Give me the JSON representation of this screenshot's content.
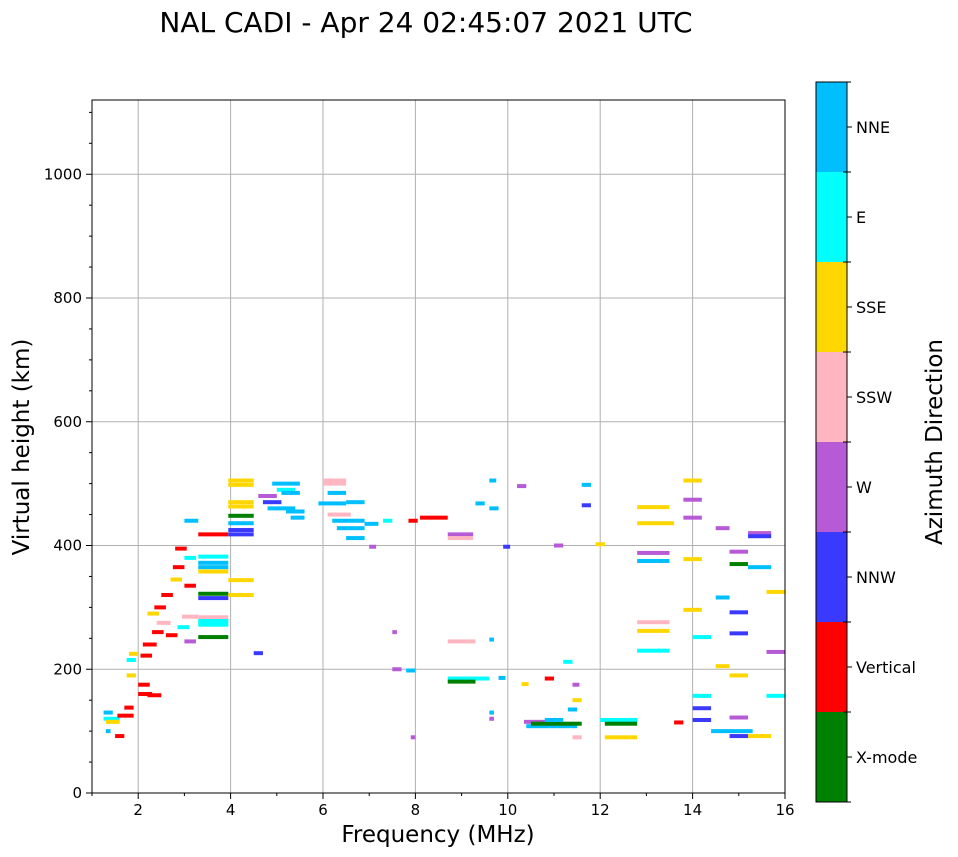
{
  "chart_data": {
    "type": "scatter",
    "title": "NAL CADI - Apr 24 02:45:07 2021 UTC",
    "xlabel": "Frequency (MHz)",
    "ylabel": "Virtual height (km)",
    "xlim": [
      1,
      16
    ],
    "ylim": [
      0,
      1120
    ],
    "x_ticks": [
      2,
      4,
      6,
      8,
      10,
      12,
      14,
      16
    ],
    "x_tick_labels": [
      "2",
      "4",
      "6",
      "8",
      "10",
      "12",
      "14",
      "16"
    ],
    "y_ticks": [
      0,
      200,
      400,
      600,
      800,
      1000
    ],
    "y_tick_labels": [
      "0",
      "200",
      "400",
      "600",
      "800",
      "1000"
    ],
    "grid": true,
    "colorbar": {
      "label": "Azimuth Direction",
      "categories": [
        {
          "name": "X-mode",
          "color": "#008000"
        },
        {
          "name": "Vertical",
          "color": "#ff0000"
        },
        {
          "name": "NNW",
          "color": "#3a3aff"
        },
        {
          "name": "W",
          "color": "#b65ad6"
        },
        {
          "name": "SSW",
          "color": "#ffb6c1"
        },
        {
          "name": "SSE",
          "color": "#ffd700"
        },
        {
          "name": "E",
          "color": "#00ffff"
        },
        {
          "name": "NNE",
          "color": "#00bfff"
        }
      ]
    },
    "segments": [
      {
        "f1": 1.25,
        "f2": 1.6,
        "h": 120,
        "d": "E"
      },
      {
        "f1": 1.3,
        "f2": 1.6,
        "h": 115,
        "d": "SSE"
      },
      {
        "f1": 1.25,
        "f2": 1.45,
        "h": 130,
        "d": "NNE"
      },
      {
        "f1": 1.3,
        "f2": 1.4,
        "h": 100,
        "d": "NNE"
      },
      {
        "f1": 1.5,
        "f2": 1.7,
        "h": 92,
        "d": "Vertical"
      },
      {
        "f1": 1.55,
        "f2": 1.9,
        "h": 125,
        "d": "Vertical"
      },
      {
        "f1": 1.7,
        "f2": 1.9,
        "h": 138,
        "d": "Vertical"
      },
      {
        "f1": 1.75,
        "f2": 1.95,
        "h": 190,
        "d": "SSE"
      },
      {
        "f1": 1.75,
        "f2": 1.95,
        "h": 215,
        "d": "E"
      },
      {
        "f1": 1.8,
        "f2": 2.0,
        "h": 225,
        "d": "SSE"
      },
      {
        "f1": 2.0,
        "f2": 2.3,
        "h": 160,
        "d": "Vertical"
      },
      {
        "f1": 2.0,
        "f2": 2.25,
        "h": 175,
        "d": "Vertical"
      },
      {
        "f1": 2.05,
        "f2": 2.3,
        "h": 222,
        "d": "Vertical"
      },
      {
        "f1": 2.1,
        "f2": 2.4,
        "h": 240,
        "d": "Vertical"
      },
      {
        "f1": 2.2,
        "f2": 2.5,
        "h": 158,
        "d": "Vertical"
      },
      {
        "f1": 2.2,
        "f2": 2.45,
        "h": 290,
        "d": "SSE"
      },
      {
        "f1": 2.3,
        "f2": 2.55,
        "h": 260,
        "d": "Vertical"
      },
      {
        "f1": 2.35,
        "f2": 2.6,
        "h": 300,
        "d": "Vertical"
      },
      {
        "f1": 2.4,
        "f2": 2.7,
        "h": 275,
        "d": "SSW"
      },
      {
        "f1": 2.5,
        "f2": 2.75,
        "h": 320,
        "d": "Vertical"
      },
      {
        "f1": 2.6,
        "f2": 2.85,
        "h": 255,
        "d": "Vertical"
      },
      {
        "f1": 2.7,
        "f2": 2.95,
        "h": 345,
        "d": "SSE"
      },
      {
        "f1": 2.75,
        "f2": 3.0,
        "h": 365,
        "d": "Vertical"
      },
      {
        "f1": 2.8,
        "f2": 3.05,
        "h": 395,
        "d": "Vertical"
      },
      {
        "f1": 2.85,
        "f2": 3.1,
        "h": 268,
        "d": "E"
      },
      {
        "f1": 2.95,
        "f2": 3.3,
        "h": 285,
        "d": "SSW"
      },
      {
        "f1": 3.0,
        "f2": 3.25,
        "h": 380,
        "d": "E"
      },
      {
        "f1": 3.0,
        "f2": 3.25,
        "h": 335,
        "d": "Vertical"
      },
      {
        "f1": 3.0,
        "f2": 3.25,
        "h": 245,
        "d": "W"
      },
      {
        "f1": 3.0,
        "f2": 3.3,
        "h": 440,
        "d": "NNE"
      },
      {
        "f1": 3.3,
        "f2": 3.95,
        "h": 382,
        "d": "E"
      },
      {
        "f1": 3.3,
        "f2": 3.95,
        "h": 372,
        "d": "NNE"
      },
      {
        "f1": 3.3,
        "f2": 3.95,
        "h": 365,
        "d": "NNE"
      },
      {
        "f1": 3.3,
        "f2": 3.95,
        "h": 358,
        "d": "SSE"
      },
      {
        "f1": 3.3,
        "f2": 3.95,
        "h": 322,
        "d": "X-mode"
      },
      {
        "f1": 3.3,
        "f2": 3.95,
        "h": 315,
        "d": "NNW"
      },
      {
        "f1": 3.3,
        "f2": 3.95,
        "h": 284,
        "d": "SSW"
      },
      {
        "f1": 3.3,
        "f2": 3.95,
        "h": 278,
        "d": "E"
      },
      {
        "f1": 3.3,
        "f2": 3.95,
        "h": 272,
        "d": "E"
      },
      {
        "f1": 3.3,
        "f2": 3.95,
        "h": 252,
        "d": "X-mode"
      },
      {
        "f1": 3.3,
        "f2": 3.95,
        "h": 418,
        "d": "Vertical"
      },
      {
        "f1": 3.95,
        "f2": 4.5,
        "h": 505,
        "d": "SSE"
      },
      {
        "f1": 3.95,
        "f2": 4.5,
        "h": 498,
        "d": "SSE"
      },
      {
        "f1": 3.95,
        "f2": 4.5,
        "h": 470,
        "d": "SSE"
      },
      {
        "f1": 3.95,
        "f2": 4.5,
        "h": 463,
        "d": "SSE"
      },
      {
        "f1": 3.95,
        "f2": 4.5,
        "h": 448,
        "d": "X-mode"
      },
      {
        "f1": 3.95,
        "f2": 4.5,
        "h": 436,
        "d": "NNE"
      },
      {
        "f1": 3.95,
        "f2": 4.5,
        "h": 425,
        "d": "NNW"
      },
      {
        "f1": 3.95,
        "f2": 4.5,
        "h": 418,
        "d": "NNW"
      },
      {
        "f1": 3.95,
        "f2": 4.5,
        "h": 344,
        "d": "SSE"
      },
      {
        "f1": 3.95,
        "f2": 4.5,
        "h": 320,
        "d": "SSE"
      },
      {
        "f1": 4.5,
        "f2": 4.7,
        "h": 226,
        "d": "NNW"
      },
      {
        "f1": 4.6,
        "f2": 5.0,
        "h": 480,
        "d": "W"
      },
      {
        "f1": 4.7,
        "f2": 5.1,
        "h": 470,
        "d": "NNW"
      },
      {
        "f1": 4.8,
        "f2": 5.4,
        "h": 460,
        "d": "NNE"
      },
      {
        "f1": 4.9,
        "f2": 5.5,
        "h": 500,
        "d": "NNE"
      },
      {
        "f1": 5.0,
        "f2": 5.4,
        "h": 490,
        "d": "E"
      },
      {
        "f1": 5.1,
        "f2": 5.5,
        "h": 485,
        "d": "NNE"
      },
      {
        "f1": 5.2,
        "f2": 5.6,
        "h": 455,
        "d": "NNE"
      },
      {
        "f1": 5.3,
        "f2": 5.6,
        "h": 445,
        "d": "NNE"
      },
      {
        "f1": 5.9,
        "f2": 6.5,
        "h": 468,
        "d": "NNE"
      },
      {
        "f1": 6.0,
        "f2": 6.5,
        "h": 505,
        "d": "SSW"
      },
      {
        "f1": 6.0,
        "f2": 6.5,
        "h": 500,
        "d": "SSW"
      },
      {
        "f1": 6.1,
        "f2": 6.5,
        "h": 485,
        "d": "NNE"
      },
      {
        "f1": 6.1,
        "f2": 6.6,
        "h": 450,
        "d": "SSW"
      },
      {
        "f1": 6.2,
        "f2": 6.9,
        "h": 440,
        "d": "NNE"
      },
      {
        "f1": 6.3,
        "f2": 6.9,
        "h": 428,
        "d": "NNE"
      },
      {
        "f1": 6.5,
        "f2": 6.9,
        "h": 412,
        "d": "NNE"
      },
      {
        "f1": 6.5,
        "f2": 6.9,
        "h": 470,
        "d": "NNE"
      },
      {
        "f1": 6.9,
        "f2": 7.2,
        "h": 435,
        "d": "NNE"
      },
      {
        "f1": 7.0,
        "f2": 7.15,
        "h": 398,
        "d": "W"
      },
      {
        "f1": 7.3,
        "f2": 7.5,
        "h": 440,
        "d": "E"
      },
      {
        "f1": 7.5,
        "f2": 7.6,
        "h": 260,
        "d": "W"
      },
      {
        "f1": 7.5,
        "f2": 7.7,
        "h": 200,
        "d": "W"
      },
      {
        "f1": 7.8,
        "f2": 8.0,
        "h": 198,
        "d": "NNE"
      },
      {
        "f1": 7.85,
        "f2": 8.05,
        "h": 440,
        "d": "Vertical"
      },
      {
        "f1": 7.9,
        "f2": 8.0,
        "h": 90,
        "d": "W"
      },
      {
        "f1": 8.1,
        "f2": 8.7,
        "h": 445,
        "d": "Vertical"
      },
      {
        "f1": 8.7,
        "f2": 9.25,
        "h": 418,
        "d": "W"
      },
      {
        "f1": 8.7,
        "f2": 9.25,
        "h": 412,
        "d": "SSW"
      },
      {
        "f1": 8.7,
        "f2": 9.3,
        "h": 245,
        "d": "SSW"
      },
      {
        "f1": 8.7,
        "f2": 9.6,
        "h": 185,
        "d": "E"
      },
      {
        "f1": 8.7,
        "f2": 9.3,
        "h": 180,
        "d": "X-mode"
      },
      {
        "f1": 9.3,
        "f2": 9.5,
        "h": 468,
        "d": "NNE"
      },
      {
        "f1": 9.6,
        "f2": 9.75,
        "h": 505,
        "d": "NNE"
      },
      {
        "f1": 9.6,
        "f2": 9.8,
        "h": 460,
        "d": "NNE"
      },
      {
        "f1": 9.6,
        "f2": 9.7,
        "h": 248,
        "d": "NNE"
      },
      {
        "f1": 9.6,
        "f2": 9.7,
        "h": 130,
        "d": "NNE"
      },
      {
        "f1": 9.6,
        "f2": 9.7,
        "h": 120,
        "d": "W"
      },
      {
        "f1": 9.8,
        "f2": 9.95,
        "h": 186,
        "d": "NNE"
      },
      {
        "f1": 9.9,
        "f2": 10.05,
        "h": 398,
        "d": "NNW"
      },
      {
        "f1": 10.2,
        "f2": 10.4,
        "h": 496,
        "d": "W"
      },
      {
        "f1": 10.3,
        "f2": 10.45,
        "h": 176,
        "d": "SSE"
      },
      {
        "f1": 10.35,
        "f2": 11.0,
        "h": 115,
        "d": "W"
      },
      {
        "f1": 10.4,
        "f2": 11.5,
        "h": 108,
        "d": "NNE"
      },
      {
        "f1": 10.5,
        "f2": 11.6,
        "h": 112,
        "d": "X-mode"
      },
      {
        "f1": 10.8,
        "f2": 11.2,
        "h": 118,
        "d": "NNE"
      },
      {
        "f1": 10.8,
        "f2": 11.0,
        "h": 185,
        "d": "Vertical"
      },
      {
        "f1": 11.0,
        "f2": 11.2,
        "h": 400,
        "d": "W"
      },
      {
        "f1": 11.2,
        "f2": 11.4,
        "h": 212,
        "d": "E"
      },
      {
        "f1": 11.3,
        "f2": 11.5,
        "h": 135,
        "d": "NNE"
      },
      {
        "f1": 11.4,
        "f2": 11.6,
        "h": 150,
        "d": "SSE"
      },
      {
        "f1": 11.4,
        "f2": 11.55,
        "h": 175,
        "d": "W"
      },
      {
        "f1": 11.4,
        "f2": 11.6,
        "h": 90,
        "d": "SSW"
      },
      {
        "f1": 11.6,
        "f2": 11.8,
        "h": 498,
        "d": "NNE"
      },
      {
        "f1": 11.6,
        "f2": 11.8,
        "h": 465,
        "d": "NNW"
      },
      {
        "f1": 11.9,
        "f2": 12.1,
        "h": 402,
        "d": "SSE"
      },
      {
        "f1": 12.0,
        "f2": 12.8,
        "h": 118,
        "d": "E"
      },
      {
        "f1": 12.1,
        "f2": 12.8,
        "h": 112,
        "d": "X-mode"
      },
      {
        "f1": 12.1,
        "f2": 12.8,
        "h": 90,
        "d": "SSE"
      },
      {
        "f1": 12.8,
        "f2": 13.5,
        "h": 462,
        "d": "SSE"
      },
      {
        "f1": 12.8,
        "f2": 13.6,
        "h": 436,
        "d": "SSE"
      },
      {
        "f1": 12.8,
        "f2": 13.5,
        "h": 388,
        "d": "W"
      },
      {
        "f1": 12.8,
        "f2": 13.5,
        "h": 375,
        "d": "NNE"
      },
      {
        "f1": 12.8,
        "f2": 13.5,
        "h": 276,
        "d": "SSW"
      },
      {
        "f1": 12.8,
        "f2": 13.5,
        "h": 262,
        "d": "SSE"
      },
      {
        "f1": 12.8,
        "f2": 13.5,
        "h": 230,
        "d": "E"
      },
      {
        "f1": 13.6,
        "f2": 13.8,
        "h": 114,
        "d": "Vertical"
      },
      {
        "f1": 13.8,
        "f2": 14.2,
        "h": 505,
        "d": "SSE"
      },
      {
        "f1": 13.8,
        "f2": 14.2,
        "h": 474,
        "d": "W"
      },
      {
        "f1": 13.8,
        "f2": 14.2,
        "h": 445,
        "d": "W"
      },
      {
        "f1": 13.8,
        "f2": 14.2,
        "h": 378,
        "d": "SSE"
      },
      {
        "f1": 13.8,
        "f2": 14.2,
        "h": 296,
        "d": "SSE"
      },
      {
        "f1": 14.0,
        "f2": 14.4,
        "h": 252,
        "d": "E"
      },
      {
        "f1": 14.0,
        "f2": 14.4,
        "h": 157,
        "d": "E"
      },
      {
        "f1": 14.0,
        "f2": 14.4,
        "h": 137,
        "d": "NNW"
      },
      {
        "f1": 14.0,
        "f2": 14.4,
        "h": 118,
        "d": "NNW"
      },
      {
        "f1": 14.5,
        "f2": 14.8,
        "h": 428,
        "d": "W"
      },
      {
        "f1": 14.5,
        "f2": 14.8,
        "h": 316,
        "d": "NNE"
      },
      {
        "f1": 14.5,
        "f2": 14.8,
        "h": 205,
        "d": "SSE"
      },
      {
        "f1": 14.4,
        "f2": 15.3,
        "h": 100,
        "d": "NNE"
      },
      {
        "f1": 14.8,
        "f2": 15.2,
        "h": 390,
        "d": "W"
      },
      {
        "f1": 14.8,
        "f2": 15.2,
        "h": 370,
        "d": "X-mode"
      },
      {
        "f1": 14.8,
        "f2": 15.2,
        "h": 292,
        "d": "NNW"
      },
      {
        "f1": 14.8,
        "f2": 15.2,
        "h": 258,
        "d": "NNW"
      },
      {
        "f1": 14.8,
        "f2": 15.2,
        "h": 190,
        "d": "SSE"
      },
      {
        "f1": 14.8,
        "f2": 15.2,
        "h": 122,
        "d": "W"
      },
      {
        "f1": 14.8,
        "f2": 15.2,
        "h": 92,
        "d": "NNW"
      },
      {
        "f1": 15.2,
        "f2": 15.7,
        "h": 420,
        "d": "W"
      },
      {
        "f1": 15.2,
        "f2": 15.7,
        "h": 415,
        "d": "NNW"
      },
      {
        "f1": 15.2,
        "f2": 15.7,
        "h": 365,
        "d": "NNE"
      },
      {
        "f1": 15.2,
        "f2": 15.7,
        "h": 92,
        "d": "SSE"
      },
      {
        "f1": 15.6,
        "f2": 16.0,
        "h": 325,
        "d": "SSE"
      },
      {
        "f1": 15.6,
        "f2": 16.0,
        "h": 228,
        "d": "W"
      },
      {
        "f1": 15.6,
        "f2": 16.0,
        "h": 157,
        "d": "E"
      }
    ]
  }
}
